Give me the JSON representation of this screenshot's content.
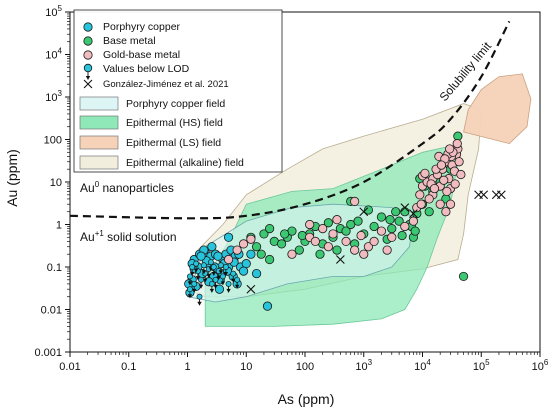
{
  "chart_data": {
    "type": "scatter",
    "title": "",
    "xlabel": "As (ppm)",
    "ylabel": "Au (ppm)",
    "xscale": "log",
    "yscale": "log",
    "xlim": [
      0.01,
      1000000
    ],
    "ylim": [
      0.001,
      100000
    ],
    "grid": false,
    "legend_position": "top-left",
    "x_ticks": [
      "0.01",
      "0.1",
      "1",
      "10",
      "100",
      "10^3",
      "10^4",
      "10^5",
      "10^6"
    ],
    "y_ticks": [
      "0.001",
      "0.01",
      "0.1",
      "1",
      "10",
      "100",
      "10^3",
      "10^4",
      "10^5"
    ],
    "colors": {
      "porphyry": "#28c4dc",
      "base_metal": "#3cc873",
      "gold_base": "#f0bcc0",
      "porphyry_field": "#ddf5f5",
      "hs_field": "#8ee8b8",
      "ls_field": "#f6d2b8",
      "alkaline_field": "#f2eede"
    },
    "legend": [
      {
        "label": "Porphyry copper",
        "kind": "circle",
        "color": "#28c4dc"
      },
      {
        "label": "Base metal",
        "kind": "circle",
        "color": "#3cc873"
      },
      {
        "label": "Gold-base metal",
        "kind": "circle",
        "color": "#f0bcc0"
      },
      {
        "label": "Values below LOD",
        "kind": "lod",
        "color": "#28c4dc"
      },
      {
        "label": "González-Jiménez et al. 2021",
        "kind": "cross",
        "color": "#111111"
      },
      {
        "label": "Porphyry copper field",
        "kind": "box",
        "color": "#ddf5f5"
      },
      {
        "label": "Epithermal (HS) field",
        "kind": "box",
        "color": "#8ee8b8"
      },
      {
        "label": "Epithermal (LS) field",
        "kind": "box",
        "color": "#f6d2b8"
      },
      {
        "label": "Epithermal (alkaline) field",
        "kind": "box",
        "color": "#f2eede"
      }
    ],
    "annotations": {
      "solubility": "Solubility limit",
      "nano_main": "Au",
      "nano_sup": "0",
      "nano_rest": " nanoparticles",
      "sol_main": "Au",
      "sol_sup": "+1",
      "sol_rest": " solid solution"
    },
    "solubility_limit": [
      [
        0.01,
        1.6
      ],
      [
        1,
        1.4
      ],
      [
        10,
        1.6
      ],
      [
        100,
        3
      ],
      [
        1000,
        10
      ],
      [
        10000,
        80
      ],
      [
        30000,
        300
      ],
      [
        100000,
        3000
      ],
      [
        300000,
        60000
      ]
    ],
    "fields": {
      "alkaline": [
        [
          1,
          0.03
        ],
        [
          2,
          0.02
        ],
        [
          10,
          0.02
        ],
        [
          100,
          0.03
        ],
        [
          1000,
          0.06
        ],
        [
          10000,
          0.09
        ],
        [
          40000,
          0.15
        ],
        [
          50000,
          0.6
        ],
        [
          60000,
          5
        ],
        [
          90000,
          60
        ],
        [
          100000,
          500
        ],
        [
          50000,
          700
        ],
        [
          10000,
          300
        ],
        [
          1000,
          120
        ],
        [
          200,
          60
        ],
        [
          50,
          20
        ],
        [
          10,
          5
        ],
        [
          4,
          1
        ],
        [
          1.5,
          0.25
        ]
      ],
      "porphyry": [
        [
          1,
          0.02
        ],
        [
          3,
          0.015
        ],
        [
          10,
          0.02
        ],
        [
          50,
          0.04
        ],
        [
          300,
          0.06
        ],
        [
          1000,
          0.06
        ],
        [
          3000,
          0.1
        ],
        [
          6000,
          0.3
        ],
        [
          7000,
          1.5
        ],
        [
          3000,
          2.5
        ],
        [
          300,
          3
        ],
        [
          60,
          2.5
        ],
        [
          10,
          1.2
        ],
        [
          2,
          0.3
        ]
      ],
      "hs": [
        [
          2,
          0.004
        ],
        [
          30,
          0.004
        ],
        [
          300,
          0.0045
        ],
        [
          2000,
          0.006
        ],
        [
          5000,
          0.01
        ],
        [
          8000,
          0.03
        ],
        [
          12000,
          0.1
        ],
        [
          18000,
          0.5
        ],
        [
          30000,
          3
        ],
        [
          40000,
          30
        ],
        [
          30000,
          70
        ],
        [
          10000,
          50
        ],
        [
          2000,
          20
        ],
        [
          300,
          7
        ],
        [
          60,
          6
        ],
        [
          10,
          3
        ],
        [
          5,
          0.4
        ],
        [
          2,
          0.05
        ]
      ],
      "ls": [
        [
          50000,
          150
        ],
        [
          300000,
          80
        ],
        [
          600000,
          200
        ],
        [
          700000,
          900
        ],
        [
          500000,
          3500
        ],
        [
          200000,
          3000
        ],
        [
          100000,
          1500
        ],
        [
          60000,
          500
        ]
      ]
    },
    "series": [
      {
        "name": "Porphyry copper",
        "color": "#28c4dc",
        "points": [
          [
            1.3,
            0.15
          ],
          [
            1.6,
            0.2
          ],
          [
            2,
            0.22
          ],
          [
            2.5,
            0.18
          ],
          [
            3,
            0.2
          ],
          [
            1.5,
            0.1
          ],
          [
            2.2,
            0.12
          ],
          [
            3.2,
            0.09
          ],
          [
            4,
            0.15
          ],
          [
            1.8,
            0.07
          ],
          [
            2.8,
            0.06
          ],
          [
            5,
            0.1
          ],
          [
            6,
            0.06
          ],
          [
            7,
            0.04
          ],
          [
            1.2,
            0.05
          ],
          [
            1.4,
            0.035
          ],
          [
            3.5,
            0.03
          ],
          [
            8,
            0.1
          ],
          [
            10,
            0.12
          ],
          [
            4.5,
            0.2
          ],
          [
            5.5,
            0.25
          ],
          [
            6.5,
            0.18
          ],
          [
            3.8,
            0.07
          ],
          [
            2.3,
            0.045
          ],
          [
            1.9,
            0.25
          ],
          [
            12,
            0.2
          ],
          [
            5,
            0.5
          ],
          [
            9,
            0.08
          ],
          [
            1.1,
            0.025
          ],
          [
            15,
            0.07
          ],
          [
            4.2,
            0.12
          ],
          [
            2.6,
            0.3
          ],
          [
            3.3,
            0.18
          ],
          [
            2.1,
            0.14
          ],
          [
            1.7,
            0.18
          ],
          [
            7.5,
            0.2
          ],
          [
            6.2,
            0.13
          ],
          [
            4.8,
            0.08
          ],
          [
            1.3,
            0.09
          ],
          [
            2.9,
            0.1
          ],
          [
            3.6,
            0.05
          ],
          [
            1.2,
            0.12
          ],
          [
            23,
            0.012
          ],
          [
            1.05,
            0.04
          ]
        ]
      },
      {
        "name": "Base metal",
        "color": "#3cc873",
        "points": [
          [
            12,
            0.5
          ],
          [
            15,
            0.3
          ],
          [
            20,
            0.6
          ],
          [
            25,
            0.8
          ],
          [
            30,
            0.4
          ],
          [
            40,
            0.35
          ],
          [
            50,
            0.5
          ],
          [
            60,
            0.7
          ],
          [
            80,
            0.25
          ],
          [
            100,
            0.4
          ],
          [
            120,
            0.6
          ],
          [
            150,
            0.9
          ],
          [
            200,
            0.35
          ],
          [
            300,
            0.5
          ],
          [
            400,
            0.8
          ],
          [
            500,
            0.7
          ],
          [
            600,
            1
          ],
          [
            800,
            1.2
          ],
          [
            1000,
            0.6
          ],
          [
            1500,
            0.9
          ],
          [
            2000,
            1.5
          ],
          [
            3000,
            0.8
          ],
          [
            4000,
            1.2
          ],
          [
            5000,
            2
          ],
          [
            6000,
            1
          ],
          [
            7000,
            0.5
          ],
          [
            8000,
            1.8
          ],
          [
            10000,
            3
          ],
          [
            13000,
            2
          ],
          [
            15000,
            6
          ],
          [
            20000,
            10
          ],
          [
            25000,
            4
          ],
          [
            30000,
            20
          ],
          [
            35000,
            50
          ],
          [
            40000,
            120
          ],
          [
            9000,
            12
          ],
          [
            11000,
            8
          ],
          [
            700,
            0.35
          ],
          [
            350,
            0.25
          ],
          [
            180,
            0.2
          ],
          [
            25,
            0.15
          ],
          [
            18,
            0.2
          ],
          [
            45,
            0.6
          ],
          [
            90,
            0.55
          ],
          [
            250,
            1.1
          ],
          [
            2500,
            0.45
          ],
          [
            4500,
            0.55
          ],
          [
            1200,
            2.2
          ],
          [
            600,
            3.5
          ],
          [
            50000,
            0.06
          ],
          [
            6500,
            0.9
          ],
          [
            2800,
            1.3
          ],
          [
            7500,
            0.7
          ],
          [
            3500,
            2
          ]
        ]
      },
      {
        "name": "Gold-base metal",
        "color": "#f0bcc0",
        "points": [
          [
            5,
            0.15
          ],
          [
            7,
            0.25
          ],
          [
            9,
            0.35
          ],
          [
            12,
            0.45
          ],
          [
            60,
            0.2
          ],
          [
            120,
            0.5
          ],
          [
            150,
            0.4
          ],
          [
            200,
            0.8
          ],
          [
            250,
            0.3
          ],
          [
            300,
            0.6
          ],
          [
            500,
            0.4
          ],
          [
            700,
            0.25
          ],
          [
            900,
            0.55
          ],
          [
            1200,
            0.3
          ],
          [
            1500,
            0.4
          ],
          [
            2000,
            0.7
          ],
          [
            2500,
            0.25
          ],
          [
            3000,
            0.5
          ],
          [
            5000,
            0.9
          ],
          [
            7000,
            1.2
          ],
          [
            8000,
            2.5
          ],
          [
            9000,
            5
          ],
          [
            10000,
            8
          ],
          [
            12000,
            10
          ],
          [
            15000,
            12
          ],
          [
            18000,
            15
          ],
          [
            20000,
            8
          ],
          [
            22000,
            20
          ],
          [
            25000,
            30
          ],
          [
            28000,
            12
          ],
          [
            30000,
            7
          ],
          [
            32000,
            25
          ],
          [
            35000,
            18
          ],
          [
            38000,
            45
          ],
          [
            40000,
            60
          ],
          [
            42000,
            30
          ],
          [
            15000,
            5
          ],
          [
            10000,
            14
          ],
          [
            14000,
            9
          ],
          [
            9500,
            3
          ],
          [
            11000,
            16
          ],
          [
            17000,
            20
          ],
          [
            23000,
            11
          ],
          [
            26000,
            6
          ],
          [
            31000,
            40
          ],
          [
            36000,
            9
          ],
          [
            45000,
            15
          ],
          [
            19000,
            40
          ],
          [
            27000,
            45
          ],
          [
            33000,
            50
          ],
          [
            24000,
            35
          ],
          [
            21000,
            25
          ],
          [
            29000,
            60
          ],
          [
            39000,
            80
          ],
          [
            13000,
            4
          ],
          [
            16000,
            7
          ],
          [
            700,
            3.5
          ],
          [
            120,
            1
          ],
          [
            1000,
            0.2
          ],
          [
            350,
            1.3
          ],
          [
            20000,
            3
          ],
          [
            30000,
            3
          ],
          [
            25000,
            2
          ]
        ]
      },
      {
        "name": "Values below LOD",
        "color": "#28c4dc",
        "points": [
          [
            1.1,
            0.06
          ],
          [
            1.3,
            0.04
          ],
          [
            1.5,
            0.08
          ],
          [
            1.7,
            0.05
          ],
          [
            2,
            0.07
          ],
          [
            2.3,
            0.09
          ],
          [
            2.6,
            0.04
          ],
          [
            3,
            0.05
          ],
          [
            3.4,
            0.08
          ],
          [
            4,
            0.06
          ],
          [
            4.5,
            0.1
          ],
          [
            5,
            0.04
          ],
          [
            1.2,
            0.1
          ],
          [
            1.4,
            0.12
          ],
          [
            1.9,
            0.11
          ],
          [
            2.5,
            0.13
          ],
          [
            6,
            0.07
          ],
          [
            7,
            0.05
          ],
          [
            1.1,
            0.03
          ],
          [
            1.6,
            0.02
          ],
          [
            2.8,
            0.1
          ],
          [
            3.7,
            0.11
          ]
        ]
      },
      {
        "name": "González-Jiménez et al. 2021",
        "color": "#111111",
        "points": [
          [
            1000,
            2
          ],
          [
            400,
            0.15
          ],
          [
            12,
            0.03
          ],
          [
            5000,
            2.5
          ],
          [
            7000,
            1.8
          ],
          [
            90000,
            5
          ],
          [
            110000,
            5
          ],
          [
            180000,
            5
          ],
          [
            220000,
            5
          ]
        ]
      }
    ]
  }
}
